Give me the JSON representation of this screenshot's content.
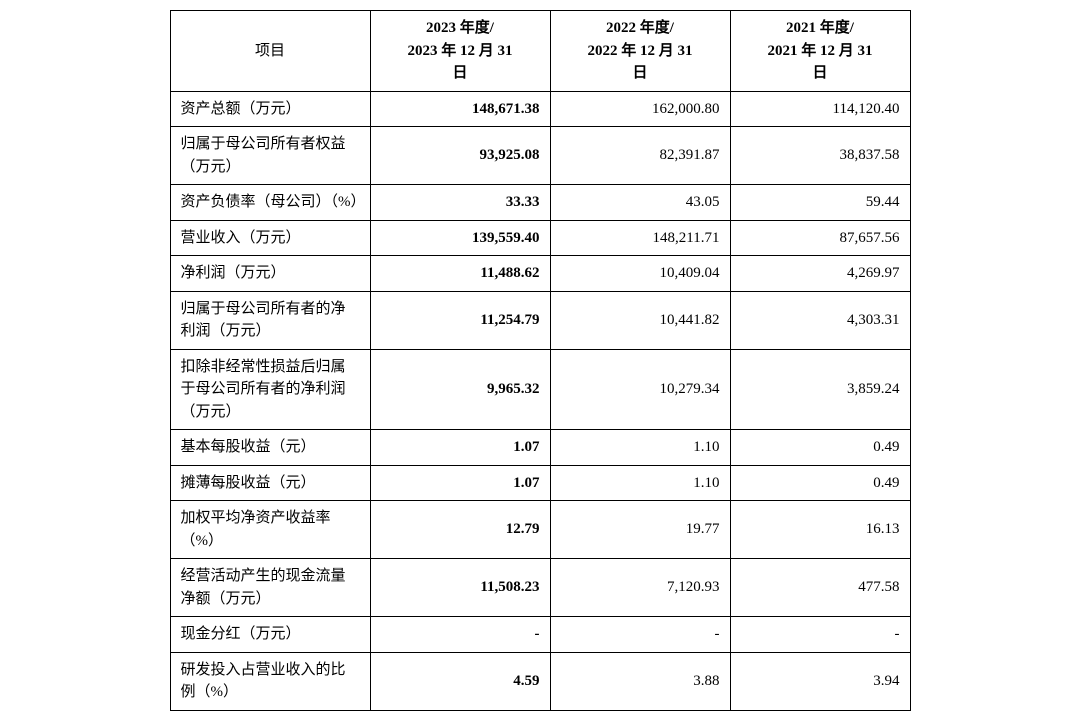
{
  "table": {
    "type": "table",
    "border_color": "#000000",
    "background_color": "#ffffff",
    "text_color": "#000000",
    "font_size": 15,
    "columns": {
      "item_header": "项目",
      "year_2023": "2023 年度/\n2023 年 12 月 31\n日",
      "year_2022": "2022 年度/\n2022 年 12 月 31\n日",
      "year_2021": "2021 年度/\n2021 年 12 月 31\n日",
      "widths": [
        200,
        180,
        180,
        180
      ],
      "label_align": "left",
      "value_align": "right",
      "header_align": "center"
    },
    "rows": [
      {
        "label": "资产总额（万元）",
        "y2023": "148,671.38",
        "y2022": "162,000.80",
        "y2021": "114,120.40"
      },
      {
        "label": "归属于母公司所有者权益（万元）",
        "y2023": "93,925.08",
        "y2022": "82,391.87",
        "y2021": "38,837.58"
      },
      {
        "label": "资产负债率（母公司）（%）",
        "y2023": "33.33",
        "y2022": "43.05",
        "y2021": "59.44"
      },
      {
        "label": "营业收入（万元）",
        "y2023": "139,559.40",
        "y2022": "148,211.71",
        "y2021": "87,657.56"
      },
      {
        "label": "净利润（万元）",
        "y2023": "11,488.62",
        "y2022": "10,409.04",
        "y2021": "4,269.97"
      },
      {
        "label": "归属于母公司所有者的净利润（万元）",
        "y2023": "11,254.79",
        "y2022": "10,441.82",
        "y2021": "4,303.31"
      },
      {
        "label": "扣除非经常性损益后归属于母公司所有者的净利润（万元）",
        "y2023": "9,965.32",
        "y2022": "10,279.34",
        "y2021": "3,859.24"
      },
      {
        "label": "基本每股收益（元）",
        "y2023": "1.07",
        "y2022": "1.10",
        "y2021": "0.49"
      },
      {
        "label": "摊薄每股收益（元）",
        "y2023": "1.07",
        "y2022": "1.10",
        "y2021": "0.49"
      },
      {
        "label": "加权平均净资产收益率（%）",
        "y2023": "12.79",
        "y2022": "19.77",
        "y2021": "16.13"
      },
      {
        "label": "经营活动产生的现金流量净额（万元）",
        "y2023": "11,508.23",
        "y2022": "7,120.93",
        "y2021": "477.58"
      },
      {
        "label": "现金分红（万元）",
        "y2023": "-",
        "y2022": "-",
        "y2021": "-"
      },
      {
        "label": "研发投入占营业收入的比例（%）",
        "y2023": "4.59",
        "y2022": "3.88",
        "y2021": "3.94"
      }
    ]
  }
}
